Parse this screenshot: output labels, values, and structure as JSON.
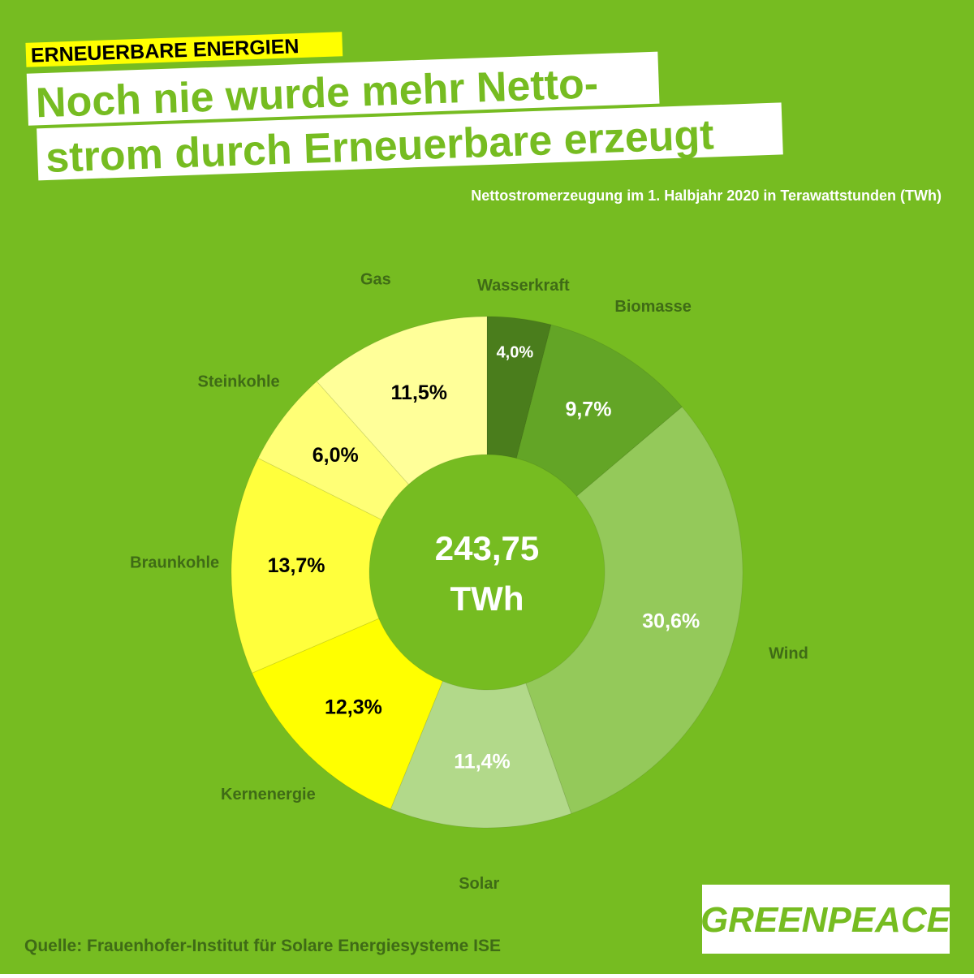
{
  "header": {
    "tag": "ERNEUERBARE ENERGIEN",
    "title_lines": [
      "Noch nie wurde mehr Netto-",
      "strom durch Erneuerbare erzeugt"
    ]
  },
  "chart_data": {
    "type": "donut",
    "subtitle": "Nettostromerzeugung im 1. Halbjahr 2020 in Terawattstunden (TWh)",
    "categories": [
      "Wasserkraft",
      "Biomasse",
      "Wind",
      "Solar",
      "Kernenergie",
      "Braunkohle",
      "Steinkohle",
      "Gas"
    ],
    "values": [
      4.0,
      9.7,
      30.6,
      11.4,
      12.3,
      13.7,
      6.0,
      11.5
    ],
    "value_labels": [
      "4,0%",
      "9,7%",
      "30,6%",
      "11,4%",
      "12,3%",
      "13,7%",
      "6,0%",
      "11,5%"
    ],
    "colors": [
      "#4a7d1c",
      "#63a526",
      "#94c95a",
      "#b2d98a",
      "#ffff00",
      "#ffff3c",
      "#ffff76",
      "#ffff99"
    ],
    "value_label_colors": [
      "#ffffff",
      "#ffffff",
      "#ffffff",
      "#ffffff",
      "#000000",
      "#000000",
      "#000000",
      "#000000"
    ],
    "total": {
      "value": 243.75,
      "label": "243,75"
    },
    "total_unit": "TWh"
  },
  "footer": {
    "source": "Quelle: Frauenhofer-Institut für Solare Energiesysteme ISE",
    "logo": "GREENPEACE"
  }
}
